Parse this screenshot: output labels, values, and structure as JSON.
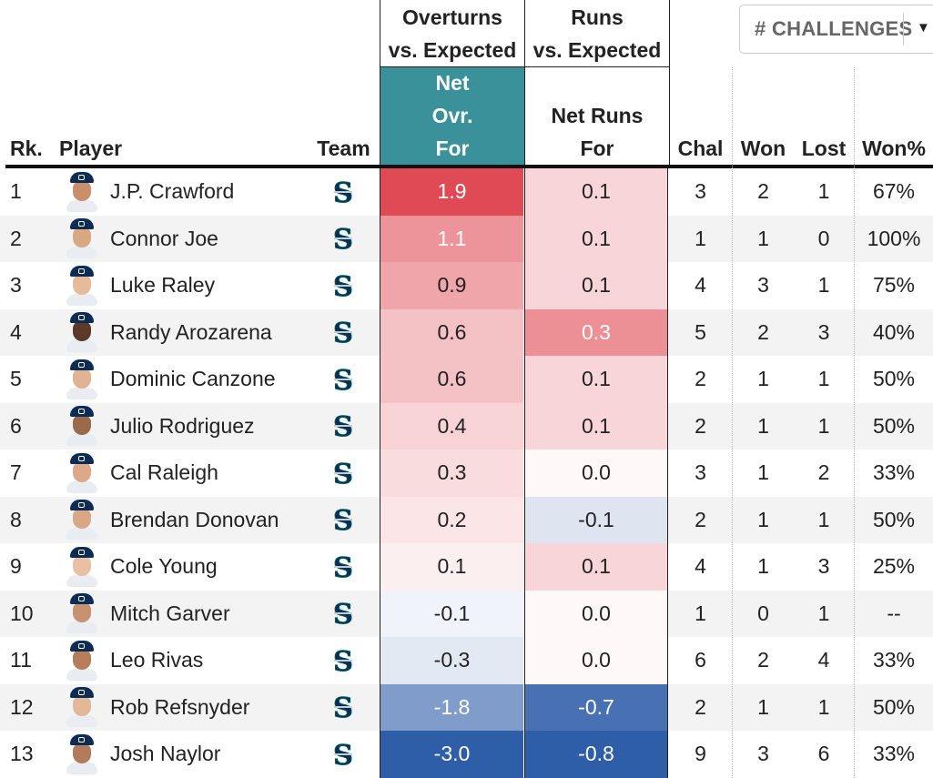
{
  "header": {
    "group_overturns": [
      "Overturns",
      "vs. Expected"
    ],
    "group_runs": [
      "Runs",
      "vs. Expected"
    ],
    "col_rank": "Rk.",
    "col_player": "Player",
    "col_team": "Team",
    "col_net_ovr": [
      "Net",
      "Ovr.",
      "For"
    ],
    "col_net_runs": [
      "Net Runs",
      "For"
    ],
    "col_chal": "Chal",
    "col_won": "Won",
    "col_lost": "Lost",
    "col_pct": "Won%"
  },
  "dropdown": {
    "label": "# CHALLENGES"
  },
  "colors": {
    "net_header": "#3a9199",
    "positive": "#e04a55",
    "negative": "#2f5ea9"
  },
  "rows": [
    {
      "rank": "1",
      "name": "J.P. Crawford",
      "net_ovr": "1.9",
      "net_runs": "0.1",
      "chal": "3",
      "won": "2",
      "lost": "1",
      "pct": "67%",
      "skin": "#c98f6a"
    },
    {
      "rank": "2",
      "name": "Connor Joe",
      "net_ovr": "1.1",
      "net_runs": "0.1",
      "chal": "1",
      "won": "1",
      "lost": "0",
      "pct": "100%",
      "skin": "#d8a883"
    },
    {
      "rank": "3",
      "name": "Luke Raley",
      "net_ovr": "0.9",
      "net_runs": "0.1",
      "chal": "4",
      "won": "3",
      "lost": "1",
      "pct": "75%",
      "skin": "#e6bb9c"
    },
    {
      "rank": "4",
      "name": "Randy Arozarena",
      "net_ovr": "0.6",
      "net_runs": "0.3",
      "chal": "5",
      "won": "2",
      "lost": "3",
      "pct": "40%",
      "skin": "#5b3a2a"
    },
    {
      "rank": "5",
      "name": "Dominic Canzone",
      "net_ovr": "0.6",
      "net_runs": "0.1",
      "chal": "2",
      "won": "1",
      "lost": "1",
      "pct": "50%",
      "skin": "#e0b393"
    },
    {
      "rank": "6",
      "name": "Julio Rodriguez",
      "net_ovr": "0.4",
      "net_runs": "0.1",
      "chal": "2",
      "won": "1",
      "lost": "1",
      "pct": "50%",
      "skin": "#9a6a4c"
    },
    {
      "rank": "7",
      "name": "Cal Raleigh",
      "net_ovr": "0.3",
      "net_runs": "0.0",
      "chal": "3",
      "won": "1",
      "lost": "2",
      "pct": "33%",
      "skin": "#dca98a"
    },
    {
      "rank": "8",
      "name": "Brendan Donovan",
      "net_ovr": "0.2",
      "net_runs": "-0.1",
      "chal": "2",
      "won": "1",
      "lost": "1",
      "pct": "50%",
      "skin": "#d9a786"
    },
    {
      "rank": "9",
      "name": "Cole Young",
      "net_ovr": "0.1",
      "net_runs": "0.1",
      "chal": "4",
      "won": "1",
      "lost": "3",
      "pct": "25%",
      "skin": "#e9c0a3"
    },
    {
      "rank": "10",
      "name": "Mitch Garver",
      "net_ovr": "-0.1",
      "net_runs": "0.0",
      "chal": "1",
      "won": "0",
      "lost": "1",
      "pct": "--",
      "skin": "#c79272"
    },
    {
      "rank": "11",
      "name": "Leo Rivas",
      "net_ovr": "-0.3",
      "net_runs": "0.0",
      "chal": "6",
      "won": "2",
      "lost": "4",
      "pct": "33%",
      "skin": "#b57d5a"
    },
    {
      "rank": "12",
      "name": "Rob Refsnyder",
      "net_ovr": "-1.8",
      "net_runs": "-0.7",
      "chal": "2",
      "won": "1",
      "lost": "1",
      "pct": "50%",
      "skin": "#e3b899"
    },
    {
      "rank": "13",
      "name": "Josh Naylor",
      "net_ovr": "-3.0",
      "net_runs": "-0.8",
      "chal": "9",
      "won": "3",
      "lost": "6",
      "pct": "33%",
      "skin": "#b27c5c"
    }
  ]
}
